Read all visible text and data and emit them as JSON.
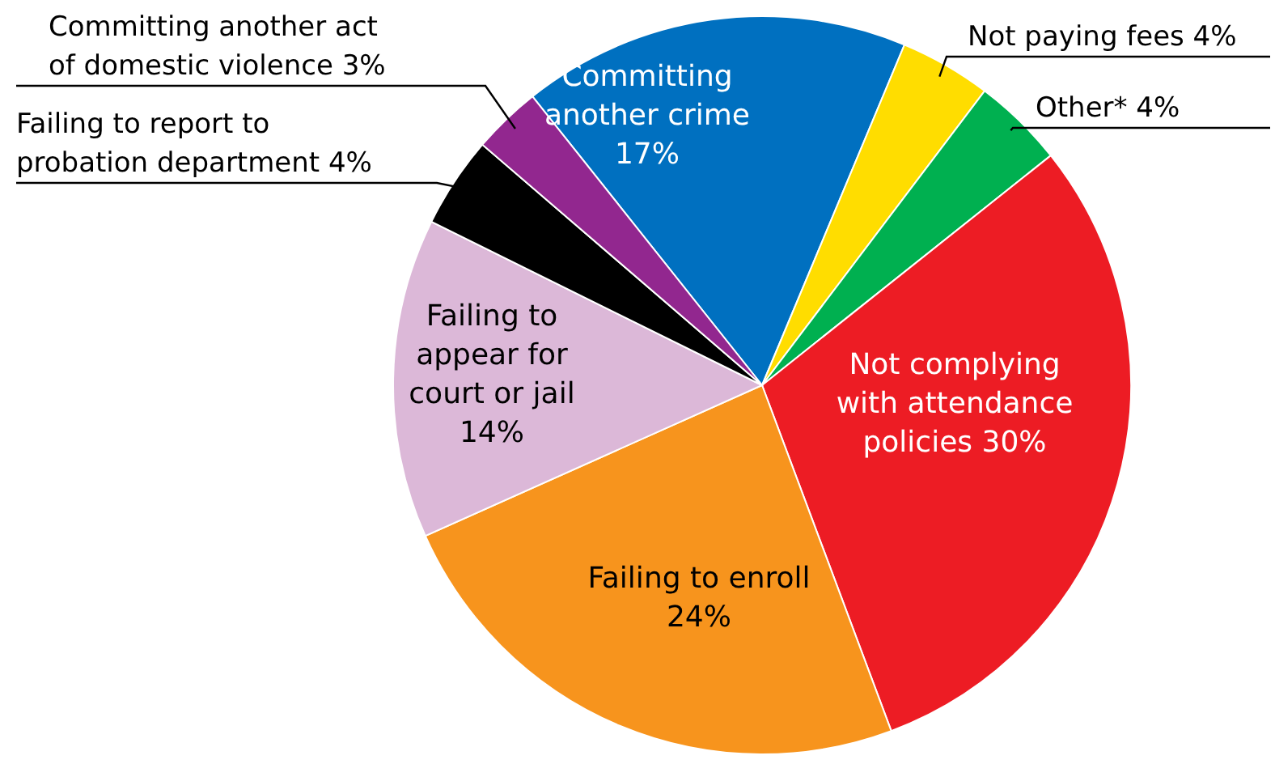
{
  "chart_data": {
    "type": "pie",
    "categories": [
      "Committing another crime",
      "Not paying fees",
      "Other*",
      "Not complying with attendance policies",
      "Failing to enroll",
      "Failing to appear for court or jail",
      "Failing to report to probation department",
      "Committing another act of domestic violence"
    ],
    "values": [
      17,
      4,
      4,
      30,
      24,
      14,
      4,
      3
    ],
    "value_labels": [
      "17%",
      "4%",
      "4%",
      "30%",
      "24%",
      "14%",
      "4%",
      "3%"
    ],
    "colors": [
      "#0070c0",
      "#ffdd00",
      "#00b050",
      "#ed1c24",
      "#f7941d",
      "#dcb8d8",
      "#000000",
      "#92278f"
    ]
  }
}
